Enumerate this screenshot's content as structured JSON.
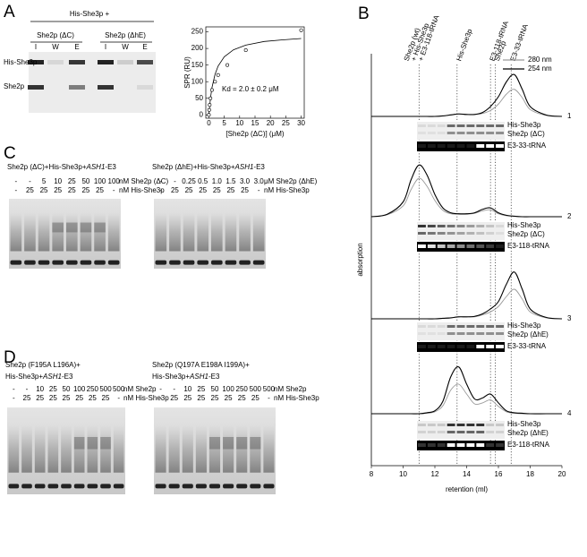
{
  "panel_a": {
    "label": "A",
    "header": "His-She3p +",
    "groups": [
      "She2p (ΔC)",
      "She2p (ΔhE)"
    ],
    "lanes": [
      "I",
      "W",
      "E",
      "I",
      "W",
      "E"
    ],
    "bands": [
      "His-She3p",
      "She2p"
    ]
  },
  "panel_b": {
    "label": "B"
  },
  "chart_data": [
    {
      "type": "scatter",
      "xlabel": "[She2p (ΔC)]   (μM)",
      "ylabel": "SPR (RU)",
      "annotation": "Kd = 2.0 ± 0.2 μM",
      "x": [
        0,
        0.1,
        0.25,
        0.5,
        1,
        2,
        3,
        6,
        12,
        30
      ],
      "values": [
        0,
        15,
        30,
        50,
        75,
        100,
        120,
        150,
        195,
        255
      ],
      "fit": {
        "x": [
          0,
          0.5,
          1,
          2,
          3,
          5,
          8,
          12,
          18,
          24,
          30
        ],
        "values": [
          0,
          49,
          82,
          122,
          147,
          175,
          196,
          210,
          221,
          226,
          230
        ]
      },
      "xlim": [
        -1,
        31
      ],
      "ylim": [
        -10,
        265
      ],
      "xticks": [
        0,
        5,
        10,
        15,
        20,
        25,
        30
      ],
      "yticks": [
        0,
        50,
        100,
        150,
        200,
        250
      ]
    },
    {
      "type": "line",
      "xlabel": "retention (ml)",
      "ylabel": "absorption",
      "xlim": [
        8,
        20
      ],
      "xticks": [
        8,
        10,
        12,
        14,
        16,
        18,
        20
      ],
      "legend": "upper right",
      "series": [
        {
          "name": "280 nm",
          "color": "#9a9a9a"
        },
        {
          "name": "254 nm",
          "color": "#000000"
        }
      ],
      "markers": [
        {
          "x": 11,
          "lines": [
            "She2p (wt)",
            "+ His-She3p",
            "+ E3-118-tRNA"
          ]
        },
        {
          "x": 13.4,
          "lines": [
            "His-She3p"
          ]
        },
        {
          "x": 15.5,
          "lines": [
            "E3-118-tRNA"
          ]
        },
        {
          "x": 15.8,
          "lines": [
            "She2p"
          ]
        },
        {
          "x": 16.8,
          "lines": [
            "E3-33-tRNA"
          ]
        }
      ],
      "x": [
        8,
        9,
        10,
        10.5,
        11,
        11.5,
        12,
        12.5,
        13,
        13.5,
        14,
        14.5,
        15,
        15.5,
        16,
        16.5,
        17,
        17.5,
        18,
        19,
        20
      ],
      "traces": [
        {
          "label": "1",
          "gel": [
            "His-She3p",
            "She2p (ΔC)",
            "E3-33-tRNA"
          ],
          "values": [
            [
              0,
              0,
              0,
              0,
              0,
              0,
              0,
              0.01,
              0.03,
              0.05,
              0.04,
              0.04,
              0.06,
              0.12,
              0.25,
              0.45,
              0.55,
              0.38,
              0.14,
              0.02,
              0
            ],
            [
              0,
              0,
              0,
              0,
              0,
              0,
              0,
              0.01,
              0.03,
              0.05,
              0.04,
              0.04,
              0.08,
              0.2,
              0.4,
              0.7,
              0.85,
              0.55,
              0.2,
              0.03,
              0
            ]
          ]
        },
        {
          "label": "2",
          "gel": [
            "His-She3p",
            "She2p (ΔC)",
            "E3-118-tRNA"
          ],
          "values": [
            [
              0,
              0.04,
              0.22,
              0.55,
              0.78,
              0.62,
              0.33,
              0.13,
              0.06,
              0.05,
              0.05,
              0.07,
              0.12,
              0.14,
              0.06,
              0.02,
              0.01,
              0,
              0,
              0,
              0
            ],
            [
              0,
              0.05,
              0.3,
              0.75,
              1.05,
              0.85,
              0.45,
              0.18,
              0.08,
              0.06,
              0.06,
              0.08,
              0.15,
              0.18,
              0.08,
              0.03,
              0.01,
              0,
              0,
              0,
              0
            ]
          ]
        },
        {
          "label": "3",
          "gel": [
            "His-She3p",
            "She2p (ΔhE)",
            "E3-33-tRNA"
          ],
          "values": [
            [
              0,
              0,
              0,
              0,
              0,
              0,
              0,
              0.01,
              0.02,
              0.04,
              0.04,
              0.04,
              0.08,
              0.14,
              0.25,
              0.45,
              0.6,
              0.4,
              0.14,
              0.02,
              0
            ],
            [
              0,
              0,
              0,
              0,
              0,
              0,
              0,
              0.01,
              0.02,
              0.04,
              0.04,
              0.05,
              0.1,
              0.2,
              0.35,
              0.7,
              0.95,
              0.6,
              0.2,
              0.03,
              0
            ]
          ]
        },
        {
          "label": "4",
          "gel": [
            "His-She3p",
            "She2p (ΔhE)",
            "E3-118-tRNA"
          ],
          "values": [
            [
              0,
              0,
              0,
              0,
              0,
              0.01,
              0.04,
              0.16,
              0.48,
              0.6,
              0.4,
              0.2,
              0.22,
              0.28,
              0.15,
              0.04,
              0.01,
              0,
              0,
              0,
              0
            ],
            [
              0,
              0,
              0,
              0,
              0,
              0.02,
              0.06,
              0.25,
              0.75,
              0.95,
              0.6,
              0.3,
              0.32,
              0.4,
              0.22,
              0.06,
              0.02,
              0.01,
              0,
              0,
              0
            ]
          ]
        }
      ]
    }
  ],
  "emsa_panels": [
    {
      "label": "C",
      "gels": [
        {
          "title": [
            [
              "She2p (ΔC)+His-She3p+",
              "ASH1",
              "-E3"
            ]
          ],
          "rows": [
            {
              "values": [
                "-",
                "-",
                "5",
                "10",
                "25",
                "50",
                "100",
                "100"
              ],
              "unit": "nM She2p (ΔC)"
            },
            {
              "values": [
                "-",
                "25",
                "25",
                "25",
                "25",
                "25",
                "25",
                "-"
              ],
              "unit": "nM His-She3p"
            }
          ]
        },
        {
          "title": [
            [
              "She2p (ΔhE)+His-She3p+",
              "ASH1",
              "-E3"
            ]
          ],
          "rows": [
            {
              "values": [
                "-",
                "-",
                "0.25",
                "0.5",
                "1.0",
                "1.5",
                "3.0",
                "3.0"
              ],
              "unit": "μM She2p (ΔhE)"
            },
            {
              "values": [
                "-",
                "25",
                "25",
                "25",
                "25",
                "25",
                "25",
                "-"
              ],
              "unit": "nM His-She3p"
            }
          ]
        }
      ]
    },
    {
      "label": "D",
      "gels": [
        {
          "title": [
            [
              "She2p (F195A L196A)+"
            ],
            [
              "His-She3p+",
              "ASH1",
              "-E3"
            ]
          ],
          "rows": [
            {
              "values": [
                "-",
                "-",
                "10",
                "25",
                "50",
                "100",
                "250",
                "500",
                "500"
              ],
              "unit": "nM She2p"
            },
            {
              "values": [
                "-",
                "25",
                "25",
                "25",
                "25",
                "25",
                "25",
                "25",
                "-"
              ],
              "unit": "nM His-She3p"
            }
          ]
        },
        {
          "title": [
            [
              "She2p (Q197A E198A I199A)+"
            ],
            [
              "His-She3p+",
              "ASH1",
              "-E3"
            ]
          ],
          "rows": [
            {
              "values": [
                "-",
                "-",
                "10",
                "25",
                "50",
                "100",
                "250",
                "500",
                "500"
              ],
              "unit": "nM She2p"
            },
            {
              "values": [
                "-",
                "25",
                "25",
                "25",
                "25",
                "25",
                "25",
                "25",
                "-"
              ],
              "unit": "nM His-She3p"
            }
          ]
        }
      ]
    }
  ]
}
